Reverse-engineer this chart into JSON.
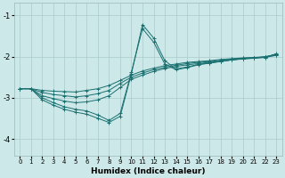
{
  "xlabel": "Humidex (Indice chaleur)",
  "bg_color": "#cce8e8",
  "grid_color": "#aacccc",
  "line_color": "#1a7070",
  "xlim": [
    -0.5,
    23.5
  ],
  "ylim": [
    -4.4,
    -0.7
  ],
  "yticks": [
    -4,
    -3,
    -2,
    -1
  ],
  "xticks": [
    0,
    1,
    2,
    3,
    4,
    5,
    6,
    7,
    8,
    9,
    10,
    11,
    12,
    13,
    14,
    15,
    16,
    17,
    18,
    19,
    20,
    21,
    22,
    23
  ],
  "lines": [
    {
      "x": [
        0,
        1,
        2,
        3,
        4,
        5,
        6,
        7,
        8,
        9,
        10,
        11,
        12,
        13,
        14,
        15,
        16,
        17,
        18,
        19,
        20,
        21,
        22,
        23
      ],
      "y": [
        -2.78,
        -2.78,
        -2.82,
        -2.84,
        -2.85,
        -2.86,
        -2.82,
        -2.78,
        -2.7,
        -2.58,
        -2.45,
        -2.35,
        -2.28,
        -2.22,
        -2.18,
        -2.14,
        -2.12,
        -2.1,
        -2.07,
        -2.05,
        -2.03,
        -2.02,
        -2.0,
        -1.95
      ]
    },
    {
      "x": [
        0,
        1,
        2,
        3,
        4,
        5,
        6,
        7,
        8,
        9,
        10,
        11,
        12,
        13,
        14,
        15,
        16,
        17,
        18,
        19,
        20,
        21,
        22,
        23
      ],
      "y": [
        -2.78,
        -2.78,
        -2.87,
        -2.92,
        -2.95,
        -2.98,
        -2.95,
        -2.9,
        -2.82,
        -2.65,
        -2.5,
        -2.4,
        -2.32,
        -2.26,
        -2.21,
        -2.17,
        -2.14,
        -2.12,
        -2.09,
        -2.06,
        -2.04,
        -2.03,
        -2.01,
        -1.96
      ]
    },
    {
      "x": [
        0,
        1,
        2,
        3,
        4,
        5,
        6,
        7,
        8,
        9,
        10,
        11,
        12,
        13,
        14,
        15,
        16,
        17,
        18,
        19,
        20,
        21,
        22,
        23
      ],
      "y": [
        -2.78,
        -2.78,
        -2.95,
        -3.02,
        -3.08,
        -3.12,
        -3.1,
        -3.05,
        -2.95,
        -2.75,
        -2.55,
        -2.45,
        -2.36,
        -2.29,
        -2.24,
        -2.2,
        -2.17,
        -2.14,
        -2.11,
        -2.08,
        -2.06,
        -2.04,
        -2.02,
        -1.97
      ]
    },
    {
      "x": [
        0,
        1,
        2,
        3,
        4,
        5,
        6,
        7,
        8,
        9,
        10,
        11,
        12,
        13,
        14,
        15,
        16,
        17,
        18,
        19,
        20,
        21,
        22,
        23
      ],
      "y": [
        -2.78,
        -2.78,
        -3.05,
        -3.18,
        -3.28,
        -3.35,
        -3.4,
        -3.5,
        -3.6,
        -3.45,
        -2.42,
        -1.22,
        -1.55,
        -2.1,
        -2.3,
        -2.25,
        -2.19,
        -2.15,
        -2.12,
        -2.08,
        -2.05,
        -2.03,
        -2.02,
        -1.93
      ]
    },
    {
      "x": [
        0,
        1,
        2,
        3,
        4,
        5,
        6,
        7,
        8,
        9,
        10,
        11,
        12,
        13,
        14,
        15,
        16,
        17,
        18,
        19,
        20,
        21,
        22,
        23
      ],
      "y": [
        -2.78,
        -2.78,
        -3.0,
        -3.12,
        -3.22,
        -3.28,
        -3.32,
        -3.42,
        -3.55,
        -3.38,
        -2.38,
        -1.32,
        -1.65,
        -2.18,
        -2.32,
        -2.27,
        -2.2,
        -2.16,
        -2.12,
        -2.08,
        -2.05,
        -2.03,
        -2.01,
        -1.94
      ]
    }
  ]
}
